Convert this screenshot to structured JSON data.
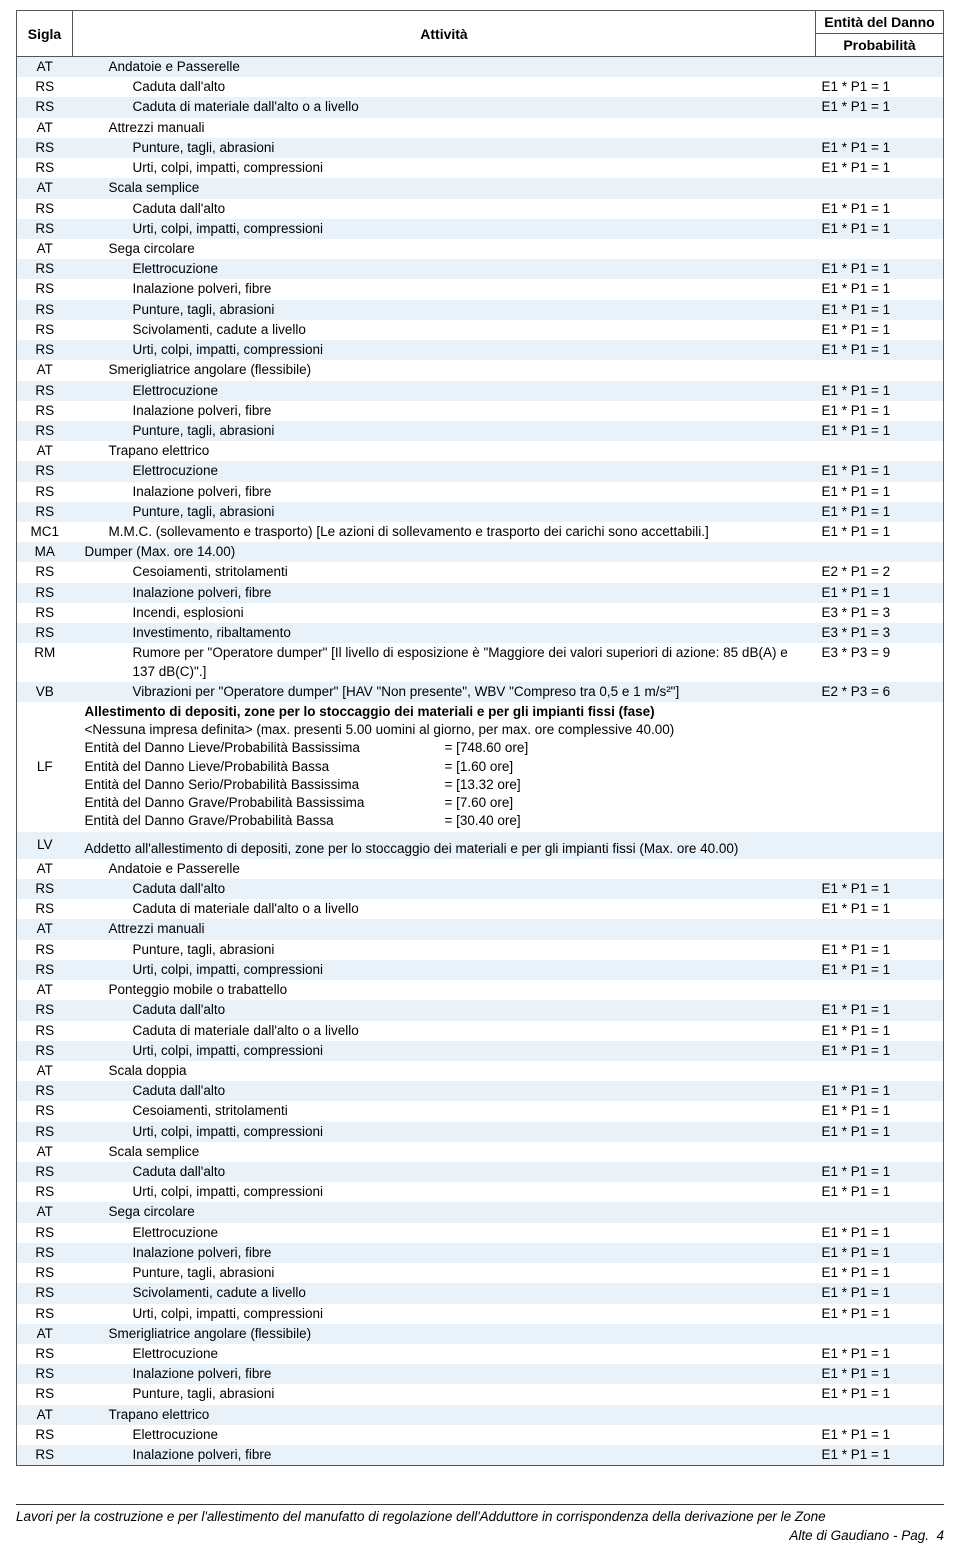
{
  "headers": {
    "sigla": "Sigla",
    "attivita": "Attività",
    "entita_l1": "Entità del Danno",
    "entita_l2": "Probabilità"
  },
  "rows": [
    {
      "sigla": "AT",
      "ind": 1,
      "text": "Andatoie e Passerelle",
      "ent": "",
      "stripe": "even"
    },
    {
      "sigla": "RS",
      "ind": 2,
      "text": "Caduta dall'alto",
      "ent": "E1 * P1 = 1",
      "stripe": "odd"
    },
    {
      "sigla": "RS",
      "ind": 2,
      "text": "Caduta di materiale dall'alto o a livello",
      "ent": "E1 * P1 = 1",
      "stripe": "even"
    },
    {
      "sigla": "AT",
      "ind": 1,
      "text": "Attrezzi manuali",
      "ent": "",
      "stripe": "odd"
    },
    {
      "sigla": "RS",
      "ind": 2,
      "text": "Punture, tagli, abrasioni",
      "ent": "E1 * P1 = 1",
      "stripe": "even"
    },
    {
      "sigla": "RS",
      "ind": 2,
      "text": "Urti, colpi, impatti, compressioni",
      "ent": "E1 * P1 = 1",
      "stripe": "odd"
    },
    {
      "sigla": "AT",
      "ind": 1,
      "text": "Scala semplice",
      "ent": "",
      "stripe": "even"
    },
    {
      "sigla": "RS",
      "ind": 2,
      "text": "Caduta dall'alto",
      "ent": "E1 * P1 = 1",
      "stripe": "odd"
    },
    {
      "sigla": "RS",
      "ind": 2,
      "text": "Urti, colpi, impatti, compressioni",
      "ent": "E1 * P1 = 1",
      "stripe": "even"
    },
    {
      "sigla": "AT",
      "ind": 1,
      "text": "Sega circolare",
      "ent": "",
      "stripe": "odd"
    },
    {
      "sigla": "RS",
      "ind": 2,
      "text": "Elettrocuzione",
      "ent": "E1 * P1 = 1",
      "stripe": "even"
    },
    {
      "sigla": "RS",
      "ind": 2,
      "text": "Inalazione polveri, fibre",
      "ent": "E1 * P1 = 1",
      "stripe": "odd"
    },
    {
      "sigla": "RS",
      "ind": 2,
      "text": "Punture, tagli, abrasioni",
      "ent": "E1 * P1 = 1",
      "stripe": "even"
    },
    {
      "sigla": "RS",
      "ind": 2,
      "text": "Scivolamenti, cadute a livello",
      "ent": "E1 * P1 = 1",
      "stripe": "odd"
    },
    {
      "sigla": "RS",
      "ind": 2,
      "text": "Urti, colpi, impatti, compressioni",
      "ent": "E1 * P1 = 1",
      "stripe": "even"
    },
    {
      "sigla": "AT",
      "ind": 1,
      "text": "Smerigliatrice angolare (flessibile)",
      "ent": "",
      "stripe": "odd"
    },
    {
      "sigla": "RS",
      "ind": 2,
      "text": "Elettrocuzione",
      "ent": "E1 * P1 = 1",
      "stripe": "even"
    },
    {
      "sigla": "RS",
      "ind": 2,
      "text": "Inalazione polveri, fibre",
      "ent": "E1 * P1 = 1",
      "stripe": "odd"
    },
    {
      "sigla": "RS",
      "ind": 2,
      "text": "Punture, tagli, abrasioni",
      "ent": "E1 * P1 = 1",
      "stripe": "even"
    },
    {
      "sigla": "AT",
      "ind": 1,
      "text": "Trapano elettrico",
      "ent": "",
      "stripe": "odd"
    },
    {
      "sigla": "RS",
      "ind": 2,
      "text": "Elettrocuzione",
      "ent": "E1 * P1 = 1",
      "stripe": "even"
    },
    {
      "sigla": "RS",
      "ind": 2,
      "text": "Inalazione polveri, fibre",
      "ent": "E1 * P1 = 1",
      "stripe": "odd"
    },
    {
      "sigla": "RS",
      "ind": 2,
      "text": "Punture, tagli, abrasioni",
      "ent": "E1 * P1 = 1",
      "stripe": "even"
    },
    {
      "sigla": "MC1",
      "ind": 1,
      "text": "M.M.C. (sollevamento e trasporto) [Le azioni di sollevamento e trasporto dei carichi sono accettabili.]",
      "ent": "E1 * P1 = 1",
      "stripe": "odd"
    },
    {
      "sigla": "MA",
      "ind": 0,
      "text": "Dumper  (Max. ore 14.00)",
      "ent": "",
      "stripe": "even"
    },
    {
      "sigla": "RS",
      "ind": 2,
      "text": "Cesoiamenti, stritolamenti",
      "ent": "E2 * P1 = 2",
      "stripe": "odd"
    },
    {
      "sigla": "RS",
      "ind": 2,
      "text": "Inalazione polveri, fibre",
      "ent": "E1 * P1 = 1",
      "stripe": "even"
    },
    {
      "sigla": "RS",
      "ind": 2,
      "text": "Incendi, esplosioni",
      "ent": "E3 * P1 = 3",
      "stripe": "odd"
    },
    {
      "sigla": "RS",
      "ind": 2,
      "text": "Investimento, ribaltamento",
      "ent": "E3 * P1 = 3",
      "stripe": "even"
    },
    {
      "sigla": "RM",
      "ind": 2,
      "text": "Rumore per \"Operatore dumper\" [Il livello di esposizione è \"Maggiore dei valori superiori di azione: 85 dB(A) e 137 dB(C)\".]",
      "ent": "E3 * P3 = 9",
      "stripe": "odd"
    },
    {
      "sigla": "VB",
      "ind": 2,
      "text": "Vibrazioni per \"Operatore dumper\" [HAV \"Non presente\", WBV \"Compreso tra 0,5 e 1 m/s²\"]",
      "ent": "E2 * P3 = 6",
      "stripe": "even"
    },
    {
      "type": "lf",
      "sigla": "LF",
      "stripe": "odd",
      "title": "Allestimento di depositi, zone per lo stoccaggio dei materiali e per gli impianti fissi (fase)",
      "sub": "<Nessuna impresa definita>  (max. presenti 5.00 uomini al giorno, per max. ore complessive 40.00)",
      "lines": [
        {
          "lab": "Entità del Danno Lieve/Probabilità Bassissima",
          "val": "= [748.60 ore]"
        },
        {
          "lab": "Entità del Danno Lieve/Probabilità Bassa",
          "val": "= [1.60 ore]"
        },
        {
          "lab": "Entità del Danno Serio/Probabilità Bassissima",
          "val": "= [13.32 ore]"
        },
        {
          "lab": "Entità del Danno Grave/Probabilità Bassissima",
          "val": "= [7.60 ore]"
        },
        {
          "lab": "Entità del Danno Grave/Probabilità Bassa",
          "val": "= [30.40 ore]"
        }
      ]
    },
    {
      "sigla": "LV",
      "ind": 0,
      "text": "Addetto all'allestimento di depositi, zone per lo stoccaggio dei materiali e per gli impianti fissi  (Max. ore 40.00)",
      "ent": "",
      "stripe": "even",
      "pretop": true
    },
    {
      "sigla": "AT",
      "ind": 1,
      "text": "Andatoie e Passerelle",
      "ent": "",
      "stripe": "odd"
    },
    {
      "sigla": "RS",
      "ind": 2,
      "text": "Caduta dall'alto",
      "ent": "E1 * P1 = 1",
      "stripe": "even"
    },
    {
      "sigla": "RS",
      "ind": 2,
      "text": "Caduta di materiale dall'alto o a livello",
      "ent": "E1 * P1 = 1",
      "stripe": "odd"
    },
    {
      "sigla": "AT",
      "ind": 1,
      "text": "Attrezzi manuali",
      "ent": "",
      "stripe": "even"
    },
    {
      "sigla": "RS",
      "ind": 2,
      "text": "Punture, tagli, abrasioni",
      "ent": "E1 * P1 = 1",
      "stripe": "odd"
    },
    {
      "sigla": "RS",
      "ind": 2,
      "text": "Urti, colpi, impatti, compressioni",
      "ent": "E1 * P1 = 1",
      "stripe": "even"
    },
    {
      "sigla": "AT",
      "ind": 1,
      "text": "Ponteggio mobile o trabattello",
      "ent": "",
      "stripe": "odd"
    },
    {
      "sigla": "RS",
      "ind": 2,
      "text": "Caduta dall'alto",
      "ent": "E1 * P1 = 1",
      "stripe": "even"
    },
    {
      "sigla": "RS",
      "ind": 2,
      "text": "Caduta di materiale dall'alto o a livello",
      "ent": "E1 * P1 = 1",
      "stripe": "odd"
    },
    {
      "sigla": "RS",
      "ind": 2,
      "text": "Urti, colpi, impatti, compressioni",
      "ent": "E1 * P1 = 1",
      "stripe": "even"
    },
    {
      "sigla": "AT",
      "ind": 1,
      "text": "Scala doppia",
      "ent": "",
      "stripe": "odd"
    },
    {
      "sigla": "RS",
      "ind": 2,
      "text": "Caduta dall'alto",
      "ent": "E1 * P1 = 1",
      "stripe": "even"
    },
    {
      "sigla": "RS",
      "ind": 2,
      "text": "Cesoiamenti, stritolamenti",
      "ent": "E1 * P1 = 1",
      "stripe": "odd"
    },
    {
      "sigla": "RS",
      "ind": 2,
      "text": "Urti, colpi, impatti, compressioni",
      "ent": "E1 * P1 = 1",
      "stripe": "even"
    },
    {
      "sigla": "AT",
      "ind": 1,
      "text": "Scala semplice",
      "ent": "",
      "stripe": "odd"
    },
    {
      "sigla": "RS",
      "ind": 2,
      "text": "Caduta dall'alto",
      "ent": "E1 * P1 = 1",
      "stripe": "even"
    },
    {
      "sigla": "RS",
      "ind": 2,
      "text": "Urti, colpi, impatti, compressioni",
      "ent": "E1 * P1 = 1",
      "stripe": "odd"
    },
    {
      "sigla": "AT",
      "ind": 1,
      "text": "Sega circolare",
      "ent": "",
      "stripe": "even"
    },
    {
      "sigla": "RS",
      "ind": 2,
      "text": "Elettrocuzione",
      "ent": "E1 * P1 = 1",
      "stripe": "odd"
    },
    {
      "sigla": "RS",
      "ind": 2,
      "text": "Inalazione polveri, fibre",
      "ent": "E1 * P1 = 1",
      "stripe": "even"
    },
    {
      "sigla": "RS",
      "ind": 2,
      "text": "Punture, tagli, abrasioni",
      "ent": "E1 * P1 = 1",
      "stripe": "odd"
    },
    {
      "sigla": "RS",
      "ind": 2,
      "text": "Scivolamenti, cadute a livello",
      "ent": "E1 * P1 = 1",
      "stripe": "even"
    },
    {
      "sigla": "RS",
      "ind": 2,
      "text": "Urti, colpi, impatti, compressioni",
      "ent": "E1 * P1 = 1",
      "stripe": "odd"
    },
    {
      "sigla": "AT",
      "ind": 1,
      "text": "Smerigliatrice angolare (flessibile)",
      "ent": "",
      "stripe": "even"
    },
    {
      "sigla": "RS",
      "ind": 2,
      "text": "Elettrocuzione",
      "ent": "E1 * P1 = 1",
      "stripe": "odd"
    },
    {
      "sigla": "RS",
      "ind": 2,
      "text": "Inalazione polveri, fibre",
      "ent": "E1 * P1 = 1",
      "stripe": "even"
    },
    {
      "sigla": "RS",
      "ind": 2,
      "text": "Punture, tagli, abrasioni",
      "ent": "E1 * P1 = 1",
      "stripe": "odd"
    },
    {
      "sigla": "AT",
      "ind": 1,
      "text": "Trapano elettrico",
      "ent": "",
      "stripe": "even"
    },
    {
      "sigla": "RS",
      "ind": 2,
      "text": "Elettrocuzione",
      "ent": "E1 * P1 = 1",
      "stripe": "odd"
    },
    {
      "sigla": "RS",
      "ind": 2,
      "text": "Inalazione polveri, fibre",
      "ent": "E1 * P1 = 1",
      "stripe": "even"
    }
  ],
  "footer": {
    "line1": "Lavori per la costruzione e per l'allestimento del manufatto di regolazione dell'Adduttore in corrispondenza della derivazione per le Zone",
    "line2": "Alte di Gaudiano - Pag.",
    "page": "4"
  }
}
